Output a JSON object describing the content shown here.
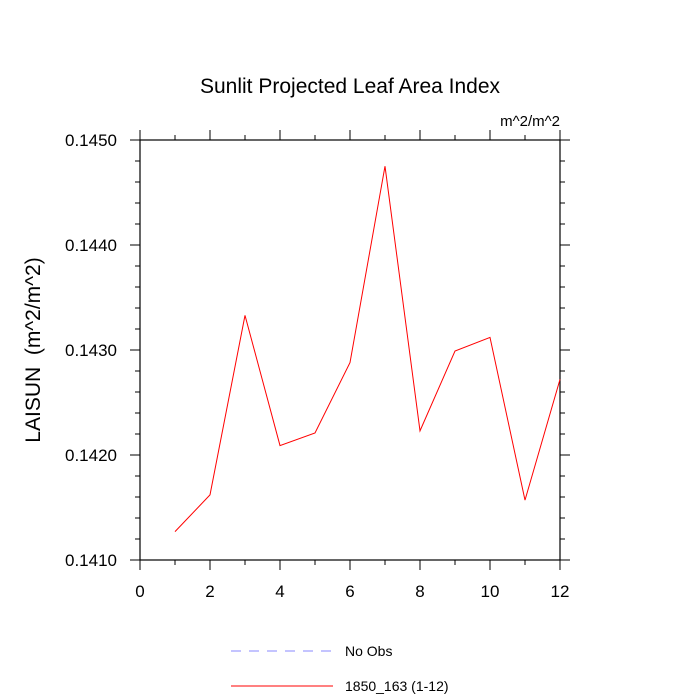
{
  "chart_data": {
    "type": "line",
    "title": "Sunlit Projected Leaf Area Index",
    "units_label": "m^2/m^2",
    "ylabel": "LAISUN  (m^2/m^2)",
    "xlabel": "",
    "xlim": [
      0,
      12
    ],
    "ylim": [
      0.141,
      0.145
    ],
    "x_ticks": [
      0,
      2,
      4,
      6,
      8,
      10,
      12
    ],
    "x_tick_labels": [
      "0",
      "2",
      "4",
      "6",
      "8",
      "10",
      "12"
    ],
    "y_ticks": [
      0.141,
      0.142,
      0.143,
      0.144,
      0.145
    ],
    "y_tick_labels": [
      "0.1410",
      "0.1420",
      "0.1430",
      "0.1440",
      "0.1450"
    ],
    "x": [
      1,
      2,
      3,
      4,
      5,
      6,
      7,
      8,
      9,
      10,
      11,
      12
    ],
    "series": [
      {
        "name": "1850_163 (1-12)",
        "color": "#ff0000",
        "values": [
          0.14127,
          0.14162,
          0.14333,
          0.14209,
          0.14221,
          0.14288,
          0.14475,
          0.14223,
          0.14299,
          0.14312,
          0.14157,
          0.14272
        ]
      }
    ],
    "legend": {
      "placement": "bottom",
      "entries": [
        {
          "label": "No Obs",
          "color": "#8a8aff",
          "style": "dashed"
        },
        {
          "label": "1850_163 (1-12)",
          "color": "#ff0000",
          "style": "solid"
        }
      ]
    },
    "grid": false
  }
}
